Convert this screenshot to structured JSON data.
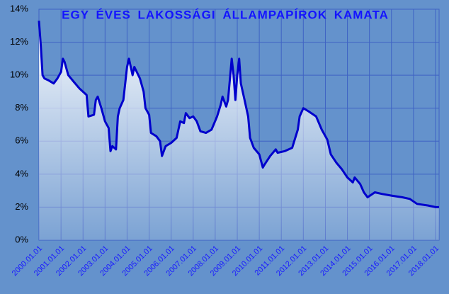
{
  "chart_data": {
    "type": "line",
    "title": "EGY ÉVES LAKOSSÁGI ÁLLAMPAPÍROK KAMATA",
    "x": [
      "2000.01.01",
      "2000.02.01",
      "2000.03.01",
      "2000.04.01",
      "2000.06.01",
      "2000.09.01",
      "2000.11.01",
      "2001.01.01",
      "2001.02.01",
      "2001.03.01",
      "2001.05.01",
      "2001.08.01",
      "2001.11.01",
      "2002.03.01",
      "2002.04.01",
      "2002.07.01",
      "2002.08.01",
      "2002.09.01",
      "2002.11.01",
      "2003.01.01",
      "2003.03.01",
      "2003.04.01",
      "2003.05.01",
      "2003.07.01",
      "2003.08.01",
      "2003.09.01",
      "2003.11.01",
      "2004.01.01",
      "2004.02.01",
      "2004.04.01",
      "2004.05.01",
      "2004.08.01",
      "2004.10.01",
      "2004.11.01",
      "2005.01.01",
      "2005.02.01",
      "2005.05.01",
      "2005.07.01",
      "2005.08.01",
      "2005.10.01",
      "2006.01.01",
      "2006.04.01",
      "2006.06.01",
      "2006.08.01",
      "2006.09.01",
      "2006.11.01",
      "2007.01.01",
      "2007.03.01",
      "2007.05.01",
      "2007.08.01",
      "2007.11.01",
      "2008.02.01",
      "2008.04.01",
      "2008.05.01",
      "2008.07.01",
      "2008.08.01",
      "2008.10.01",
      "2008.11.01",
      "2008.12.01",
      "2009.01.01",
      "2009.02.01",
      "2009.03.01",
      "2009.05.01",
      "2009.07.01",
      "2009.08.01",
      "2009.10.01",
      "2010.01.01",
      "2010.03.01",
      "2010.04.01",
      "2010.07.01",
      "2010.10.01",
      "2010.11.01",
      "2011.03.01",
      "2011.07.01",
      "2011.10.01",
      "2011.11.01",
      "2012.01.01",
      "2012.04.01",
      "2012.08.01",
      "2012.11.01",
      "2013.02.01",
      "2013.04.01",
      "2013.07.01",
      "2013.10.01",
      "2014.01.01",
      "2014.04.01",
      "2014.05.01",
      "2014.08.01",
      "2014.10.01",
      "2014.12.01",
      "2015.04.01",
      "2015.08.01",
      "2016.01.01",
      "2016.07.01",
      "2016.11.01",
      "2017.03.01",
      "2017.09.01",
      "2018.01.01",
      "2018.03.01"
    ],
    "series": [
      {
        "color": "#0000cc",
        "values": [
          13.3,
          11.8,
          10.0,
          9.8,
          9.7,
          9.5,
          9.8,
          10.2,
          11.0,
          10.8,
          10.0,
          9.6,
          9.2,
          8.8,
          7.5,
          7.6,
          8.5,
          8.7,
          8.0,
          7.2,
          6.8,
          5.4,
          5.7,
          5.5,
          7.5,
          8.0,
          8.5,
          10.5,
          11.0,
          10.0,
          10.5,
          9.8,
          9.0,
          8.0,
          7.6,
          6.5,
          6.3,
          6.0,
          5.1,
          5.7,
          5.9,
          6.2,
          7.2,
          7.1,
          7.7,
          7.4,
          7.5,
          7.2,
          6.6,
          6.5,
          6.7,
          7.5,
          8.2,
          8.7,
          8.1,
          8.5,
          11.0,
          10.0,
          8.5,
          10.0,
          11.0,
          9.5,
          8.5,
          7.5,
          6.2,
          5.6,
          5.2,
          4.4,
          4.6,
          5.1,
          5.5,
          5.3,
          5.4,
          5.6,
          6.7,
          7.5,
          8.0,
          7.8,
          7.5,
          6.7,
          6.1,
          5.2,
          4.7,
          4.3,
          3.8,
          3.5,
          3.8,
          3.4,
          2.9,
          2.6,
          2.9,
          2.8,
          2.7,
          2.6,
          2.5,
          2.2,
          2.1,
          2.0,
          2.0
        ]
      }
    ],
    "xlim": [
      "2000.01.01",
      "2018.03.01"
    ],
    "xticks": [
      "2000.01.01",
      "2001.01.01",
      "2002.01.01",
      "2003.01.01",
      "2004.01.01",
      "2005.01.01",
      "2006.01.01",
      "2007.01.01",
      "2008.01.01",
      "2009.01.01",
      "2010.01.01",
      "2011.01.01",
      "2012.01.01",
      "2013.01.01",
      "2014.01.01",
      "2015.01.01",
      "2016.01.01",
      "2017.01.01",
      "2018.01.01"
    ],
    "ylim": [
      0,
      14
    ],
    "yticks": [
      {
        "value": 0,
        "label": "0%"
      },
      {
        "value": 2,
        "label": "2%"
      },
      {
        "value": 4,
        "label": "4%"
      },
      {
        "value": 6,
        "label": "6%"
      },
      {
        "value": 8,
        "label": "8%"
      },
      {
        "value": 10,
        "label": "10%"
      },
      {
        "value": 12,
        "label": "12%"
      },
      {
        "value": 14,
        "label": "14%"
      }
    ],
    "grid": true
  }
}
